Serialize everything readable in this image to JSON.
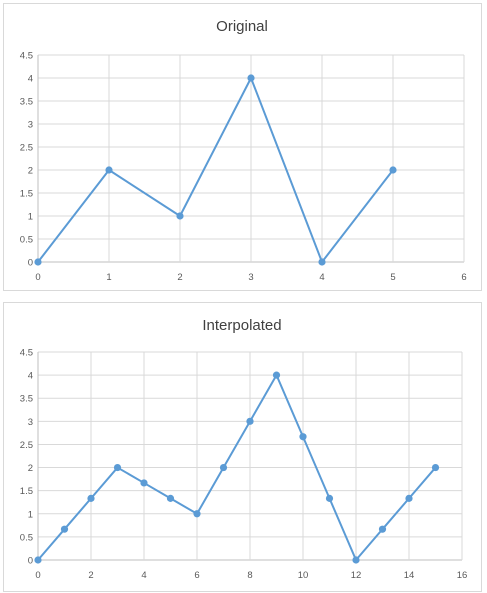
{
  "chart_data": [
    {
      "type": "line",
      "title": "Original",
      "x": [
        0,
        1,
        2,
        3,
        4,
        5
      ],
      "series": [
        {
          "values": [
            0,
            2,
            1,
            4,
            0,
            2
          ]
        }
      ],
      "xlim": [
        0,
        6
      ],
      "ylim": [
        0,
        4.5
      ],
      "xticks": [
        "0",
        "1",
        "2",
        "3",
        "4",
        "5",
        "6"
      ],
      "yticks": [
        "0",
        "0.5",
        "1",
        "1.5",
        "2",
        "2.5",
        "3",
        "3.5",
        "4",
        "4.5"
      ],
      "grid": true,
      "color": "#5b9bd5"
    },
    {
      "type": "line",
      "title": "Interpolated",
      "x": [
        0,
        1,
        2,
        3,
        4,
        5,
        6,
        7,
        8,
        9,
        10,
        11,
        12,
        13,
        14,
        15
      ],
      "series": [
        {
          "values": [
            0,
            0.667,
            1.333,
            2,
            1.667,
            1.333,
            1,
            2,
            3,
            4,
            2.667,
            1.333,
            0,
            0.667,
            1.333,
            2
          ]
        }
      ],
      "xlim": [
        0,
        16
      ],
      "ylim": [
        0,
        4.5
      ],
      "xticks": [
        "0",
        "2",
        "4",
        "6",
        "8",
        "10",
        "12",
        "14",
        "16"
      ],
      "yticks": [
        "0",
        "0.5",
        "1",
        "1.5",
        "2",
        "2.5",
        "3",
        "3.5",
        "4",
        "4.5"
      ],
      "grid": true,
      "color": "#5b9bd5"
    }
  ]
}
